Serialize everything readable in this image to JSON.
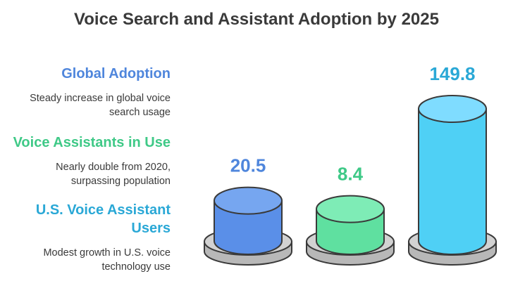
{
  "chart_data": {
    "type": "bar",
    "title": "Voice Search and Assistant Adoption by 2025",
    "categories": [
      "Global Adoption",
      "Voice Assistants in Use",
      "U.S. Voice Assistant Users"
    ],
    "series": [
      {
        "values": [
          20.5,
          8.4,
          149.8
        ]
      }
    ],
    "value_labels": [
      "20.5",
      "8.4",
      "149.8"
    ],
    "descriptions": [
      "Steady increase in global voice search usage",
      "Nearly double from 2020, surpassing population",
      "Modest growth in U.S. voice technology use"
    ],
    "colors": [
      "#4f86dc",
      "#3fc987",
      "#2aa8d6"
    ],
    "fill_colors": [
      "#5a8fe8",
      "#5fe0a0",
      "#4fd0f5"
    ],
    "top_colors": [
      "#76a6f0",
      "#7eecb6",
      "#7fdcff"
    ],
    "legend": "left",
    "grid": false
  }
}
